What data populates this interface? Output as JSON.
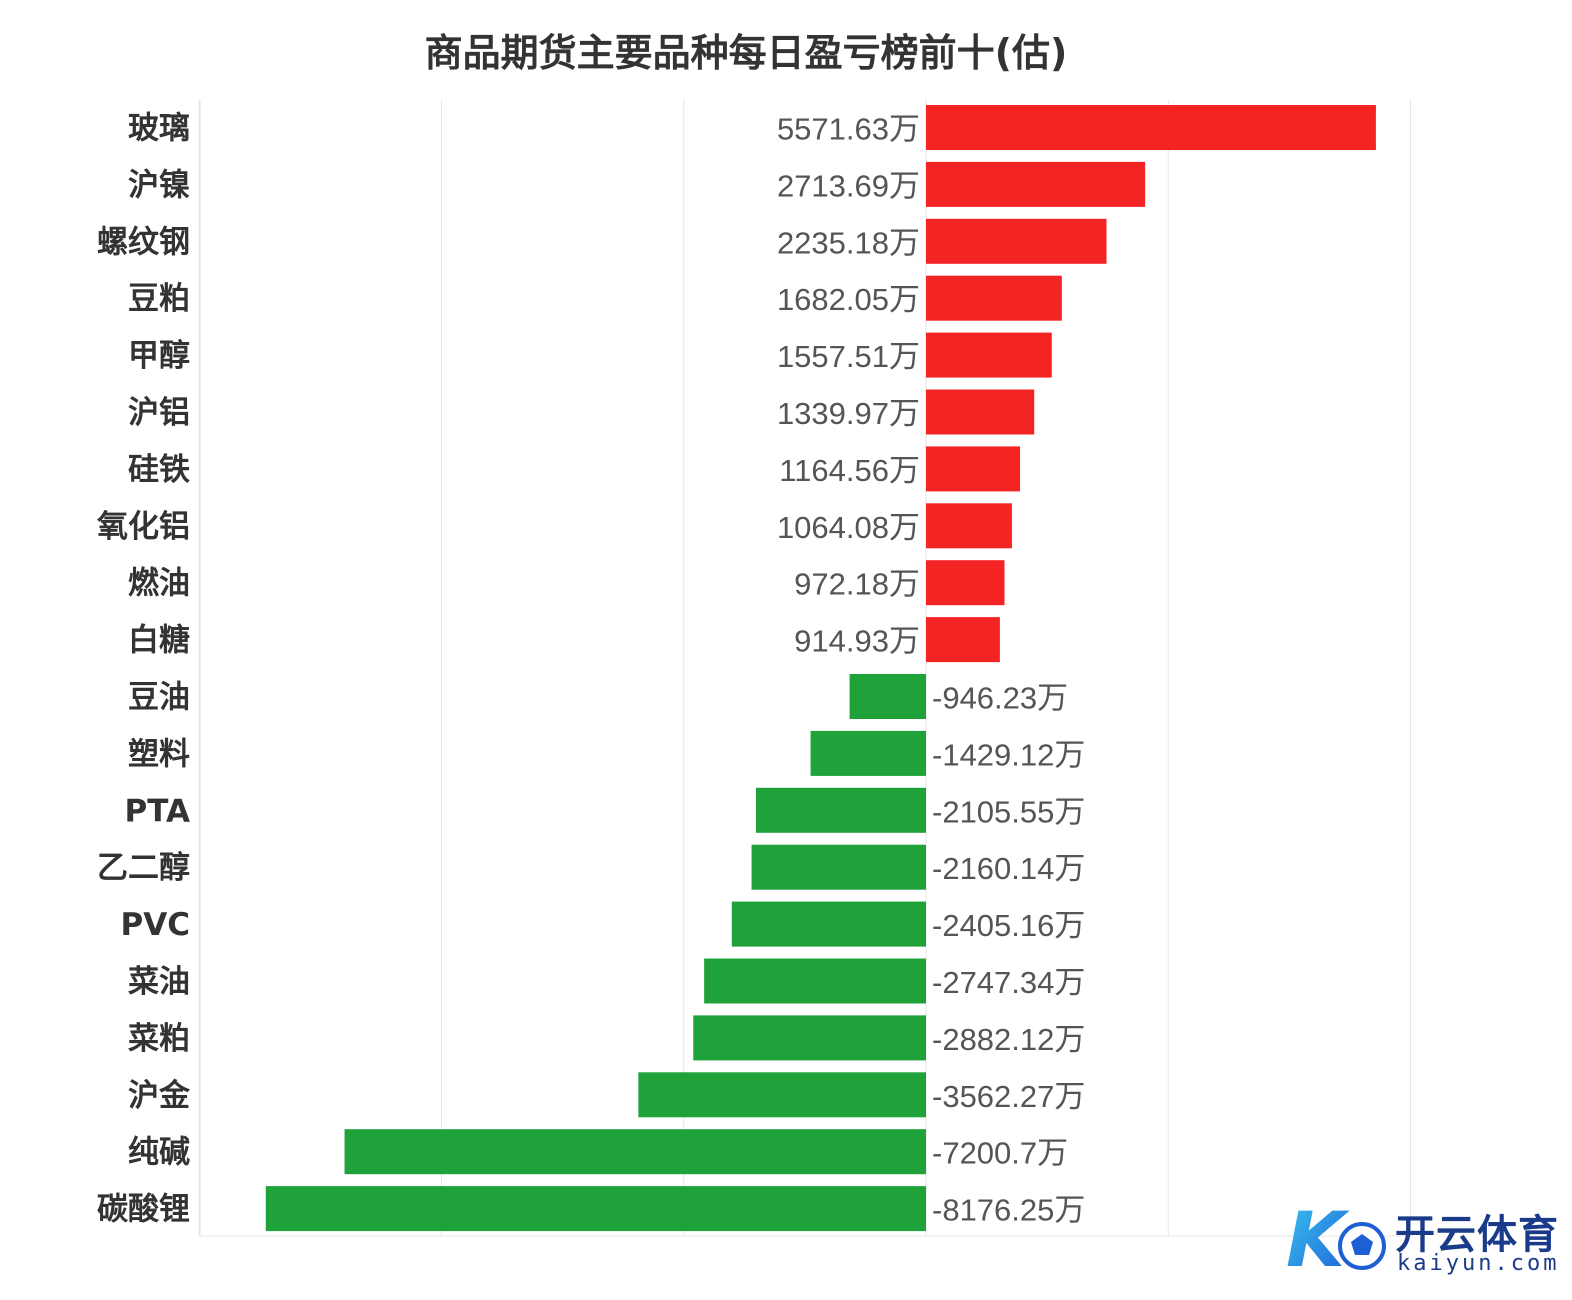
{
  "chart_data": {
    "type": "bar",
    "orientation": "horizontal",
    "title": "商品期货主要品种每日盈亏榜前十(估)",
    "unit_suffix": "万",
    "categories": [
      "玻璃",
      "沪镍",
      "螺纹钢",
      "豆粕",
      "甲醇",
      "沪铝",
      "硅铁",
      "氧化铝",
      "燃油",
      "白糖",
      "豆油",
      "塑料",
      "PTA",
      "乙二醇",
      "PVC",
      "菜油",
      "菜粕",
      "沪金",
      "纯碱",
      "碳酸锂"
    ],
    "values": [
      5571.63,
      2713.69,
      2235.18,
      1682.05,
      1557.51,
      1339.97,
      1164.56,
      1064.08,
      972.18,
      914.93,
      -946.23,
      -1429.12,
      -2105.55,
      -2160.14,
      -2405.16,
      -2747.34,
      -2882.12,
      -3562.27,
      -7200.7,
      -8176.25
    ],
    "value_labels": [
      "5571.63万",
      "2713.69万",
      "2235.18万",
      "1682.05万",
      "1557.51万",
      "1339.97万",
      "1164.56万",
      "1064.08万",
      "972.18万",
      "914.93万",
      "-946.23万",
      "-1429.12万",
      "-2105.55万",
      "-2160.14万",
      "-2405.16万",
      "-2747.34万",
      "-2882.12万",
      "-3562.27万",
      "-7200.7万",
      "-8176.25万"
    ],
    "xlim": [
      -9000,
      6000
    ],
    "grid": true,
    "legend": "none",
    "colors": {
      "positive": "#f52424",
      "negative": "#1fa23a",
      "grid": "#e6e6e6"
    }
  },
  "watermark": {
    "logo_letter": "K",
    "name": "开云体育",
    "url": "kaiyun.com",
    "color": "#1a3a8a"
  }
}
